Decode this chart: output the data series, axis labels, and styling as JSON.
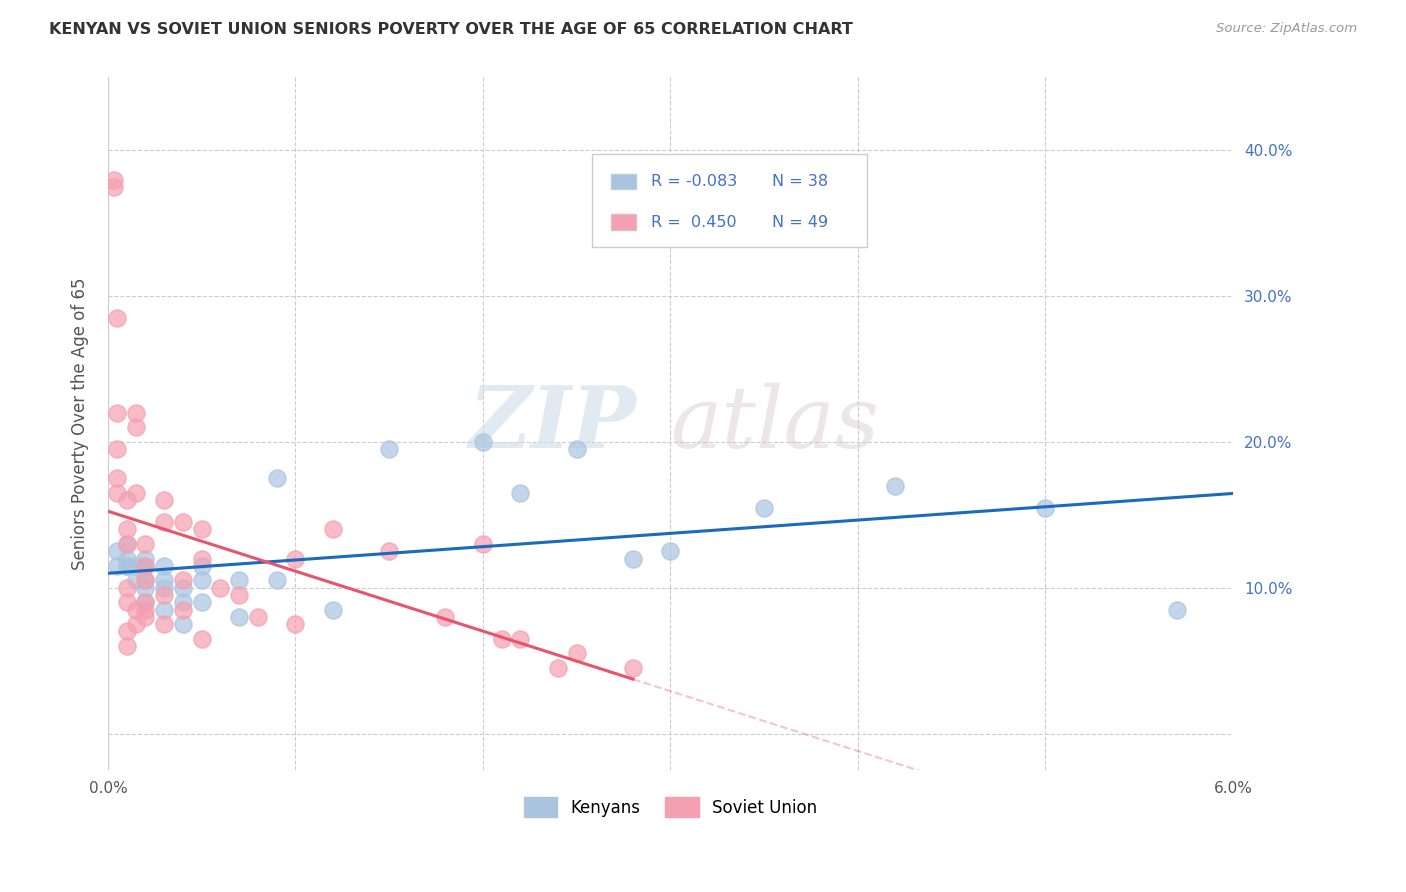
{
  "title": "KENYAN VS SOVIET UNION SENIORS POVERTY OVER THE AGE OF 65 CORRELATION CHART",
  "source": "Source: ZipAtlas.com",
  "ylabel": "Seniors Poverty Over the Age of 65",
  "xlim": [
    0.0,
    0.06
  ],
  "ylim": [
    -0.025,
    0.45
  ],
  "yticks": [
    0.0,
    0.1,
    0.2,
    0.3,
    0.4
  ],
  "ytick_labels": [
    "",
    "10.0%",
    "20.0%",
    "30.0%",
    "40.0%"
  ],
  "xticks": [
    0.0,
    0.01,
    0.02,
    0.03,
    0.04,
    0.05,
    0.06
  ],
  "xtick_labels": [
    "0.0%",
    "",
    "",
    "",
    "",
    "",
    "6.0%"
  ],
  "kenyan_color": "#aac4e0",
  "soviet_color": "#f4a0b0",
  "kenyan_line_color": "#1a6abf",
  "soviet_line_color": "#e8546a",
  "legend_r_kenyan": "-0.083",
  "legend_n_kenyan": "38",
  "legend_r_soviet": "0.450",
  "legend_n_soviet": "49",
  "watermark_zip": "ZIP",
  "watermark_atlas": "atlas",
  "kenyan_x": [
    0.0005,
    0.0005,
    0.001,
    0.001,
    0.001,
    0.001,
    0.0015,
    0.0015,
    0.002,
    0.002,
    0.002,
    0.002,
    0.002,
    0.003,
    0.003,
    0.003,
    0.003,
    0.004,
    0.004,
    0.004,
    0.005,
    0.005,
    0.005,
    0.007,
    0.007,
    0.009,
    0.009,
    0.012,
    0.015,
    0.02,
    0.022,
    0.025,
    0.028,
    0.03,
    0.035,
    0.042,
    0.05,
    0.057
  ],
  "kenyan_y": [
    0.115,
    0.125,
    0.115,
    0.115,
    0.12,
    0.13,
    0.105,
    0.115,
    0.1,
    0.105,
    0.09,
    0.115,
    0.12,
    0.105,
    0.1,
    0.085,
    0.115,
    0.1,
    0.09,
    0.075,
    0.115,
    0.105,
    0.09,
    0.105,
    0.08,
    0.175,
    0.105,
    0.085,
    0.195,
    0.2,
    0.165,
    0.195,
    0.12,
    0.125,
    0.155,
    0.17,
    0.155,
    0.085
  ],
  "soviet_x": [
    0.0003,
    0.0003,
    0.0005,
    0.0005,
    0.0005,
    0.0005,
    0.0005,
    0.001,
    0.001,
    0.001,
    0.001,
    0.001,
    0.001,
    0.001,
    0.0015,
    0.0015,
    0.0015,
    0.0015,
    0.0015,
    0.002,
    0.002,
    0.002,
    0.002,
    0.002,
    0.002,
    0.003,
    0.003,
    0.003,
    0.003,
    0.004,
    0.004,
    0.004,
    0.005,
    0.005,
    0.005,
    0.006,
    0.007,
    0.008,
    0.01,
    0.01,
    0.012,
    0.015,
    0.018,
    0.02,
    0.021,
    0.022,
    0.024,
    0.025,
    0.028
  ],
  "soviet_y": [
    0.38,
    0.375,
    0.285,
    0.22,
    0.195,
    0.175,
    0.165,
    0.16,
    0.14,
    0.13,
    0.1,
    0.09,
    0.07,
    0.06,
    0.22,
    0.21,
    0.165,
    0.085,
    0.075,
    0.13,
    0.115,
    0.105,
    0.09,
    0.085,
    0.08,
    0.16,
    0.145,
    0.095,
    0.075,
    0.145,
    0.105,
    0.085,
    0.14,
    0.12,
    0.065,
    0.1,
    0.095,
    0.08,
    0.12,
    0.075,
    0.14,
    0.125,
    0.08,
    0.13,
    0.065,
    0.065,
    0.045,
    0.055,
    0.045
  ]
}
